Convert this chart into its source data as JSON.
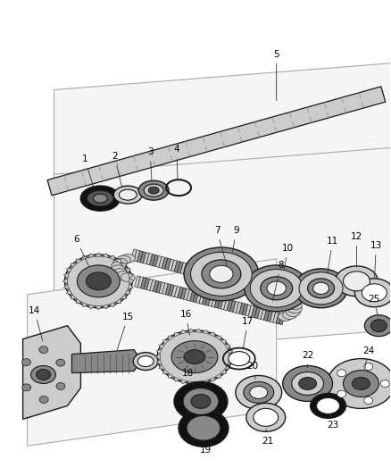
{
  "fig_width": 4.38,
  "fig_height": 5.33,
  "dpi": 100,
  "bg": "#ffffff",
  "lc": "#1a1a1a",
  "gray1": "#cccccc",
  "gray2": "#888888",
  "gray3": "#444444",
  "gray4": "#eeeeee",
  "black": "#111111",
  "panel_color": "#f8f8f8",
  "panel_edge": "#666666"
}
